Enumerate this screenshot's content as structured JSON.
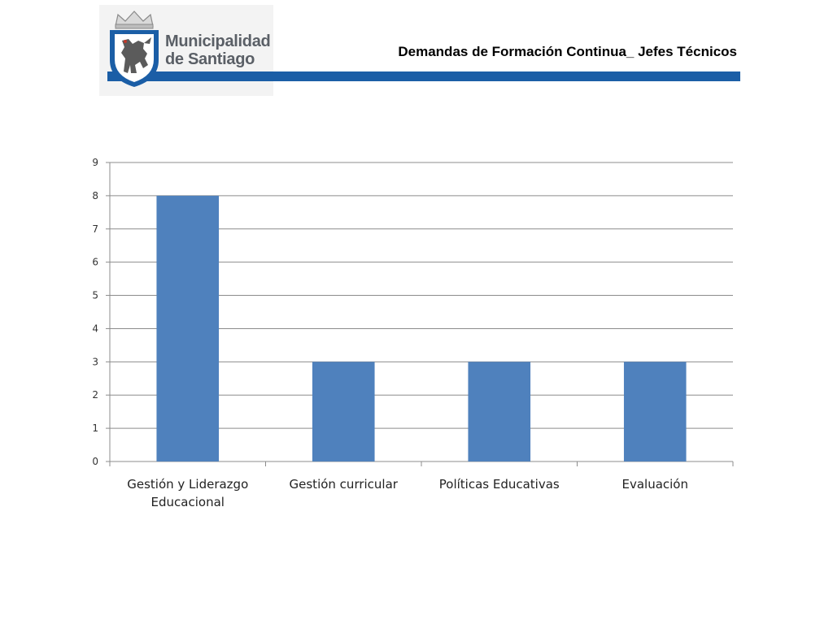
{
  "header": {
    "logo_line1": "Municipalidad",
    "logo_line2": "de Santiago",
    "title": "Demandas de Formación Continua_ Jefes Técnicos",
    "bar_color": "#1b5ea6"
  },
  "chart_data": {
    "type": "bar",
    "title": "",
    "xlabel": "",
    "ylabel": "",
    "categories": [
      [
        "Gestión y Liderazgo",
        "Educacional"
      ],
      [
        "Gestión curricular"
      ],
      [
        "Políticas Educativas"
      ],
      [
        "Evaluación"
      ]
    ],
    "values": [
      8,
      3,
      3,
      3
    ],
    "ylim": [
      0,
      9
    ],
    "yticks": [
      0,
      1,
      2,
      3,
      4,
      5,
      6,
      7,
      8,
      9
    ],
    "grid": true,
    "bar_color": "#4f81bd",
    "legend": "none"
  }
}
